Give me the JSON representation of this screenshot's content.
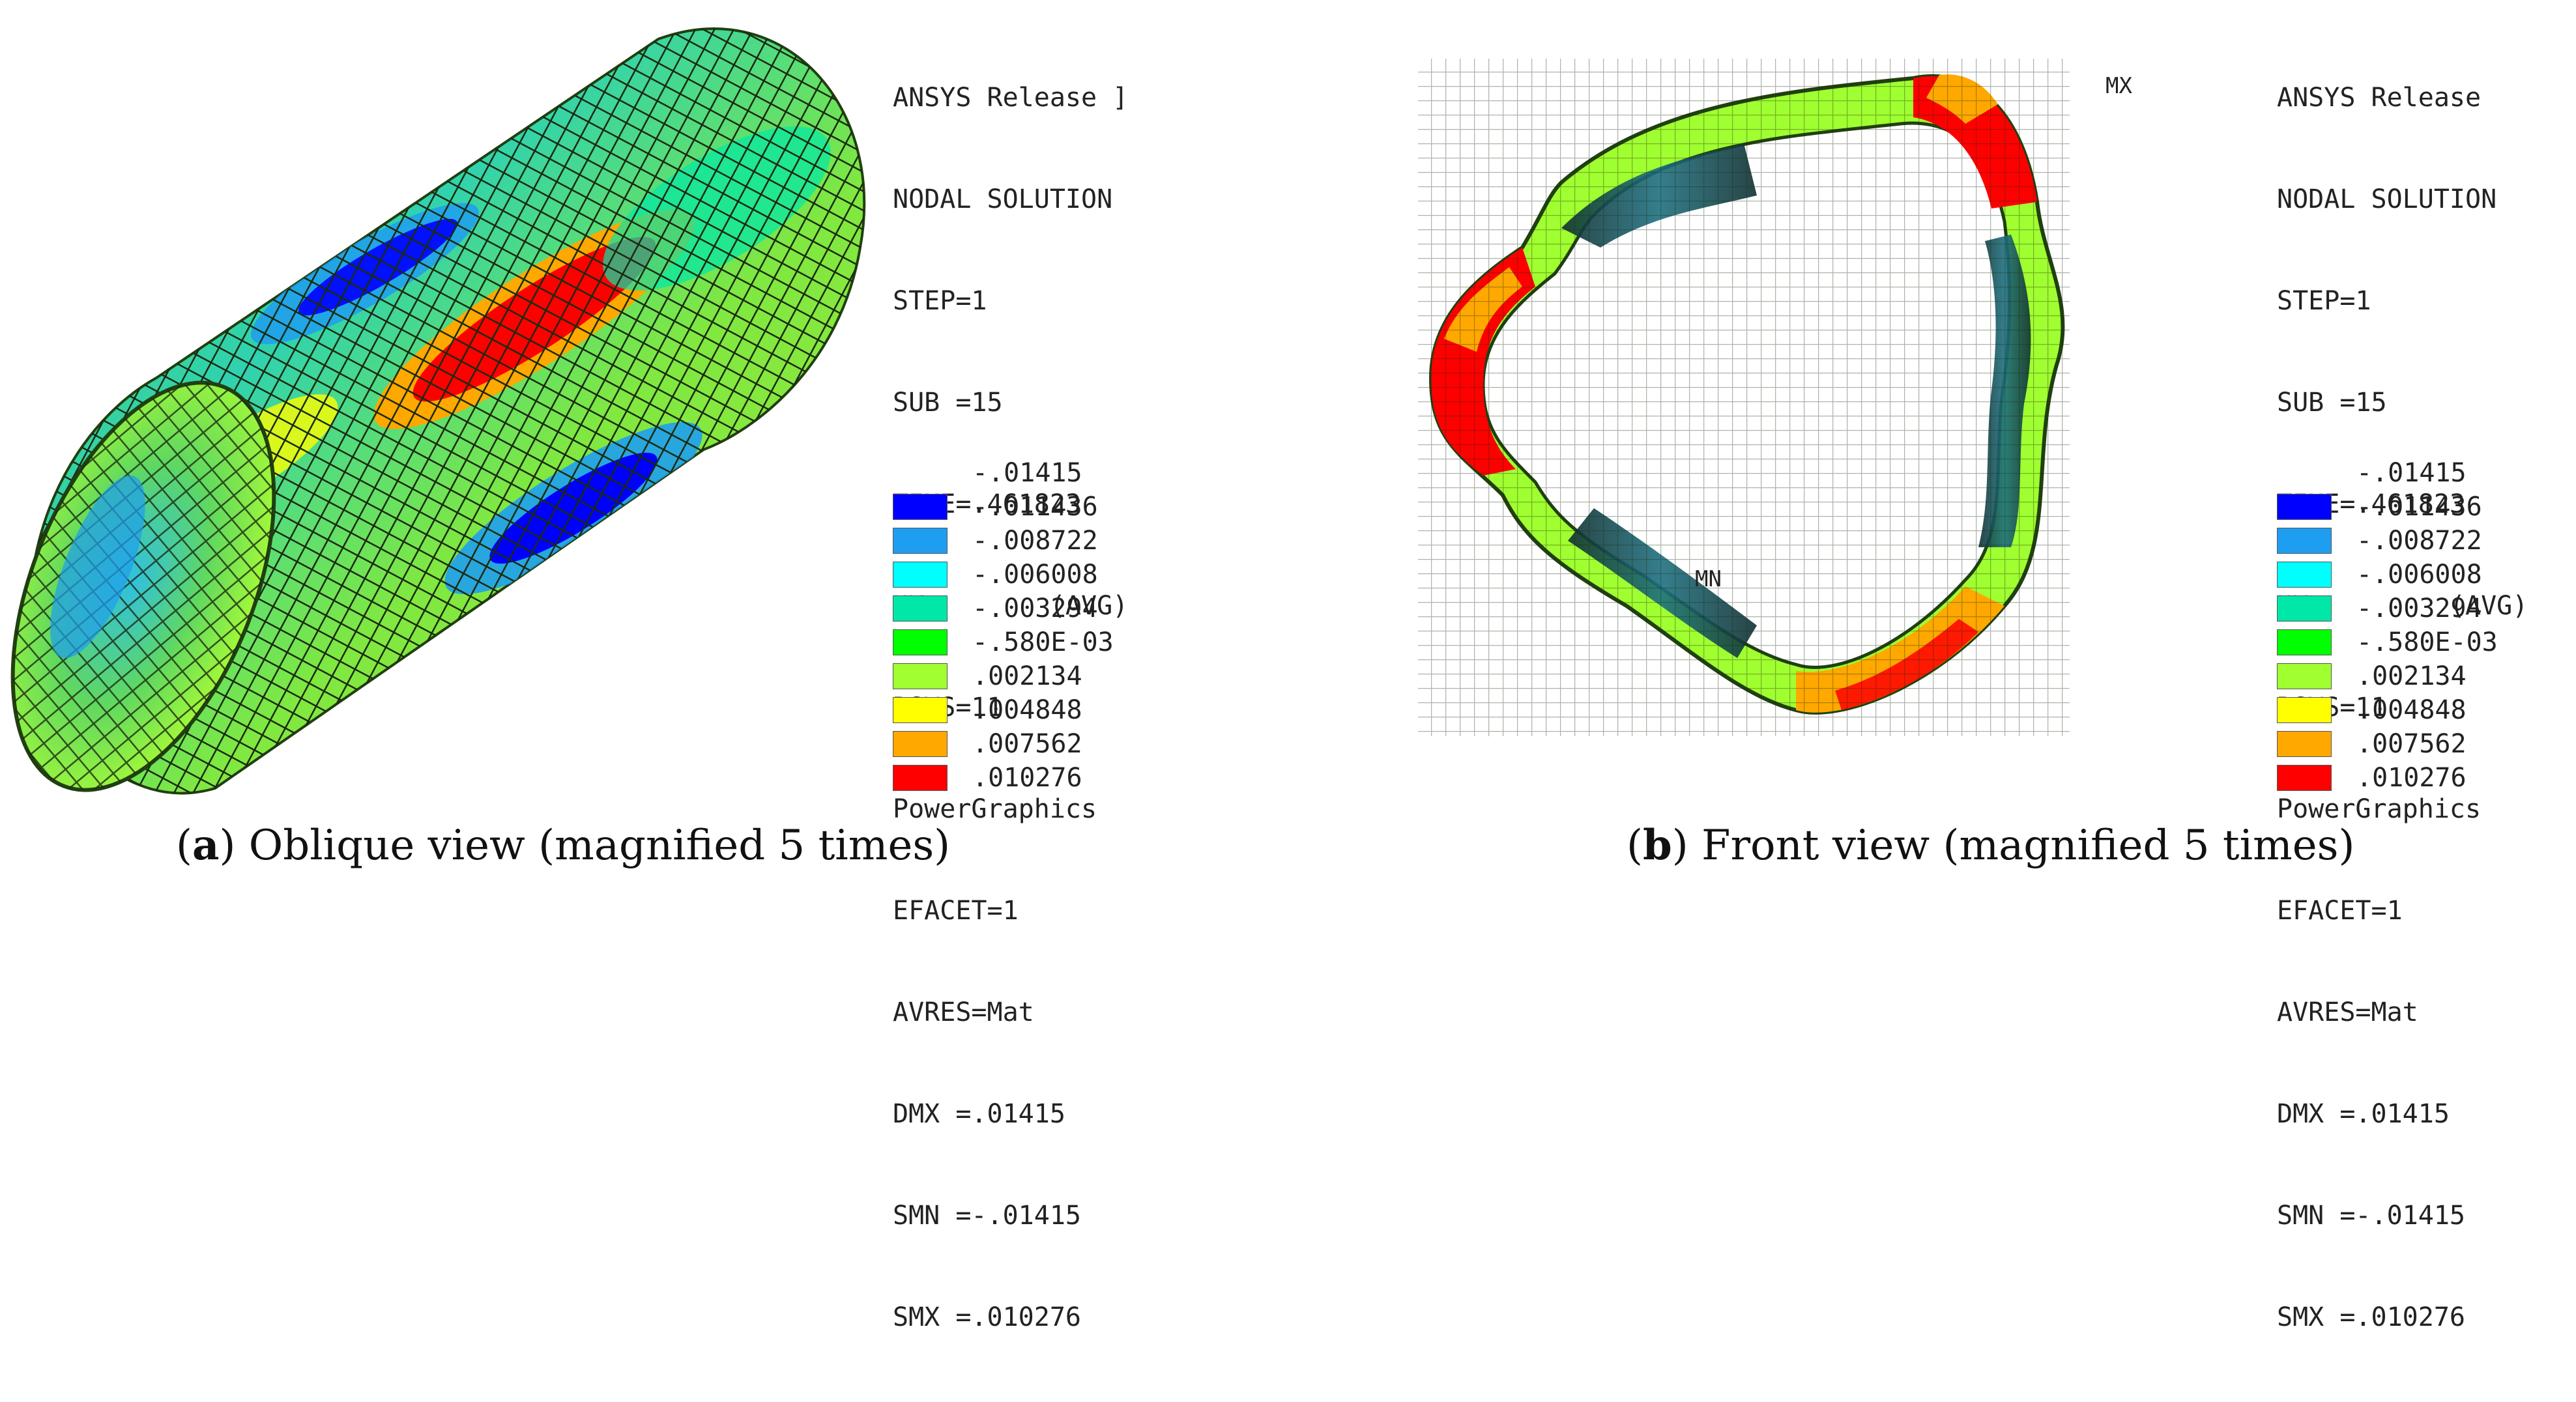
{
  "palette": [
    "#0000ff",
    "#1e9ef0",
    "#00ffff",
    "#00e8a8",
    "#00ff00",
    "#a0ff30",
    "#ffff00",
    "#ffa800",
    "#ff0000"
  ],
  "panels": [
    {
      "info_lines": [
        "ANSYS Release ]",
        "NODAL SOLUTION",
        "STEP=1",
        "SUB =15",
        "TIME=.461823",
        "UX        (AVG)",
        "RSYS=11",
        "PowerGraphics",
        "EFACET=1",
        "AVRES=Mat",
        "DMX =.01415",
        "SMN =-.01415",
        "SMX =.010276"
      ],
      "legend_top": "-.01415",
      "legend": [
        "-.011436",
        "-.008722",
        "-.006008",
        "-.003294",
        "-.580E-03",
        ".002134",
        ".004848",
        ".007562",
        ".010276"
      ],
      "caption_letter": "a",
      "caption_text": " Oblique view (magnified 5 times)"
    },
    {
      "info_lines": [
        "ANSYS Release",
        "NODAL SOLUTION",
        "STEP=1",
        "SUB =15",
        "TIME=.461823",
        "UX         (AVG)",
        "RSYS=11",
        "PowerGraphics",
        "EFACET=1",
        "AVRES=Mat",
        "DMX =.01415",
        "SMN =-.01415",
        "SMX =.010276"
      ],
      "legend_top": "-.01415",
      "legend": [
        "-.011436",
        "-.008722",
        "-.006008",
        "-.003294",
        "-.580E-03",
        ".002134",
        ".004848",
        ".007562",
        ".010276"
      ],
      "caption_letter": "b",
      "caption_text": " Front view (magnified 5 times)",
      "mx_label": "MX",
      "mn_label": "MN"
    }
  ]
}
